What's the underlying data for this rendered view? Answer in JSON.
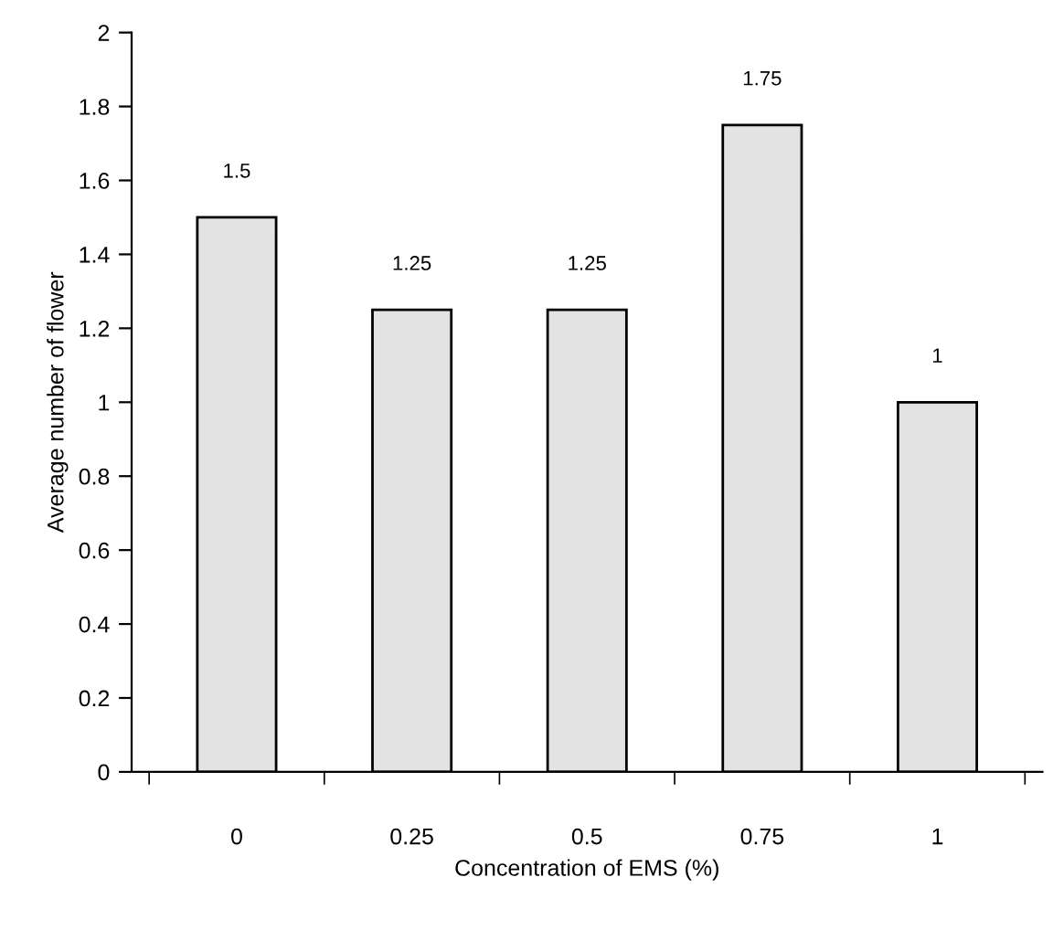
{
  "chart_data": {
    "type": "bar",
    "xlabel": "Concentration of EMS (%)",
    "ylabel": "Average number of flower",
    "categories": [
      "0",
      "0.25",
      "0.5",
      "0.75",
      "1"
    ],
    "values": [
      1.5,
      1.25,
      1.25,
      1.75,
      1
    ],
    "color": "#e3e3e3",
    "ylim": [
      0,
      2
    ],
    "yticks": [
      0,
      0.2,
      0.4,
      0.6,
      0.8,
      1,
      1.2,
      1.4,
      1.6,
      1.8,
      2
    ],
    "data_labels": true,
    "grid": false,
    "legend": false
  }
}
